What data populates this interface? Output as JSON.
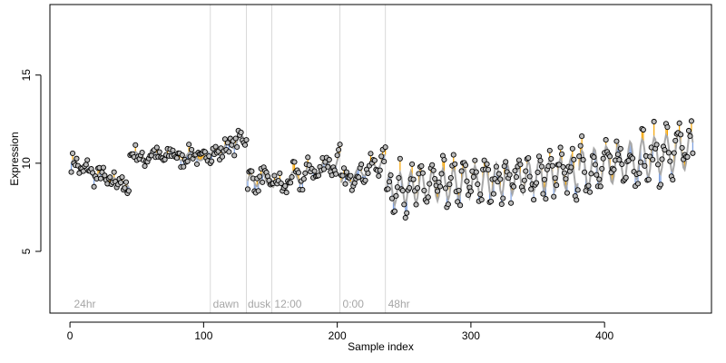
{
  "chart_data": {
    "type": "scatter",
    "title": "",
    "xlabel": "Sample index",
    "ylabel": "Expression",
    "xlim": [
      -15,
      480
    ],
    "ylim": [
      1.5,
      19
    ],
    "x_ticks": [
      0,
      100,
      200,
      300,
      400
    ],
    "y_ticks": [
      5,
      10,
      15
    ],
    "grid": false,
    "legend": "none",
    "colors": {
      "point_fill": "#bcbcbc",
      "point_stroke": "#000000",
      "above_segment": "#f5a300",
      "below_segment": "#7b9fe0",
      "trend_line": "#a8a8a8",
      "separator": "#d9d9d9",
      "condition_label": "#a6a6a6"
    },
    "separators": [
      105,
      132,
      151,
      202,
      236
    ],
    "condition_labels": [
      {
        "text": "24hr",
        "x": 3
      },
      {
        "text": "dawn",
        "x": 107
      },
      {
        "text": "dusk",
        "x": 133
      },
      {
        "text": "12:00",
        "x": 153
      },
      {
        "text": "0:00",
        "x": 204
      },
      {
        "text": "48hr",
        "x": 238
      }
    ],
    "series_segments": [
      {
        "x0": 1,
        "x1": 35,
        "y0": 10.0,
        "y1": 8.8,
        "osc_amp": 0.3,
        "osc_period": 10
      },
      {
        "x0": 36,
        "x1": 44,
        "y0": 9.0,
        "y1": 8.4,
        "osc_amp": 0.3,
        "osc_period": 6
      },
      {
        "x0": 45,
        "x1": 104,
        "y0": 10.4,
        "y1": 10.4,
        "osc_amp": 0.25,
        "osc_period": 14
      },
      {
        "x0": 105,
        "x1": 132,
        "y0": 10.4,
        "y1": 11.5,
        "osc_amp": 0.25,
        "osc_period": 10
      },
      {
        "x0": 133,
        "x1": 151,
        "y0": 9.0,
        "y1": 9.1,
        "osc_amp": 0.35,
        "osc_period": 9
      },
      {
        "x0": 152,
        "x1": 202,
        "y0": 8.6,
        "y1": 10.2,
        "osc_amp": 0.45,
        "osc_period": 12
      },
      {
        "x0": 203,
        "x1": 236,
        "y0": 8.9,
        "y1": 10.2,
        "osc_amp": 0.3,
        "osc_period": 10
      },
      {
        "x0": 237,
        "x1": 380,
        "y0": 8.5,
        "y1": 9.5,
        "osc_amp": 0.9,
        "osc_period": 8
      },
      {
        "x0": 381,
        "x1": 466,
        "y0": 9.6,
        "y1": 10.8,
        "osc_amp": 1.1,
        "osc_period": 9
      }
    ]
  }
}
